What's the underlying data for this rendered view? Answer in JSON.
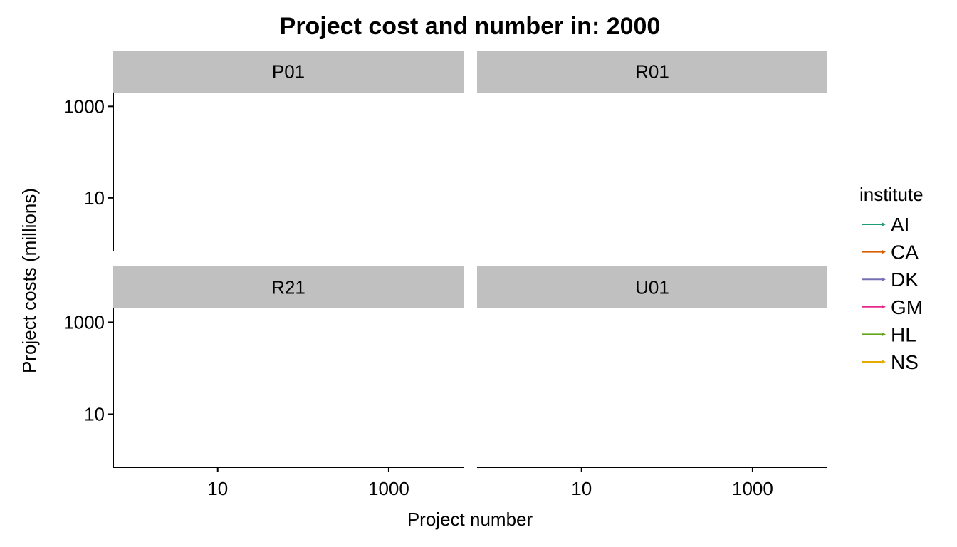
{
  "chart_data": {
    "type": "line",
    "title": "Project cost and number in:  2000",
    "xlabel": "Project number",
    "ylabel": "Project costs (millions)",
    "x_scale": "log10",
    "y_scale": "log10",
    "xlim": [
      0.6,
      7500
    ],
    "ylim": [
      0.7,
      2000
    ],
    "x_ticks": [
      10,
      1000
    ],
    "x_tick_labels": [
      "10",
      "1000"
    ],
    "y_ticks": [
      10,
      1000
    ],
    "y_tick_labels": [
      "10",
      "1000"
    ],
    "facets": [
      {
        "label": "P01",
        "series": []
      },
      {
        "label": "R01",
        "series": []
      },
      {
        "label": "R21",
        "series": []
      },
      {
        "label": "U01",
        "series": []
      }
    ],
    "legend": {
      "title": "institute",
      "placement": "right",
      "entries": [
        {
          "name": "AI",
          "color": "#1b9e77"
        },
        {
          "name": "CA",
          "color": "#d95f02"
        },
        {
          "name": "DK",
          "color": "#7570b3"
        },
        {
          "name": "GM",
          "color": "#e7298a"
        },
        {
          "name": "HL",
          "color": "#66a61e"
        },
        {
          "name": "NS",
          "color": "#e6ab02"
        }
      ]
    },
    "grid": false,
    "strip_color": "#c0c0c0"
  }
}
